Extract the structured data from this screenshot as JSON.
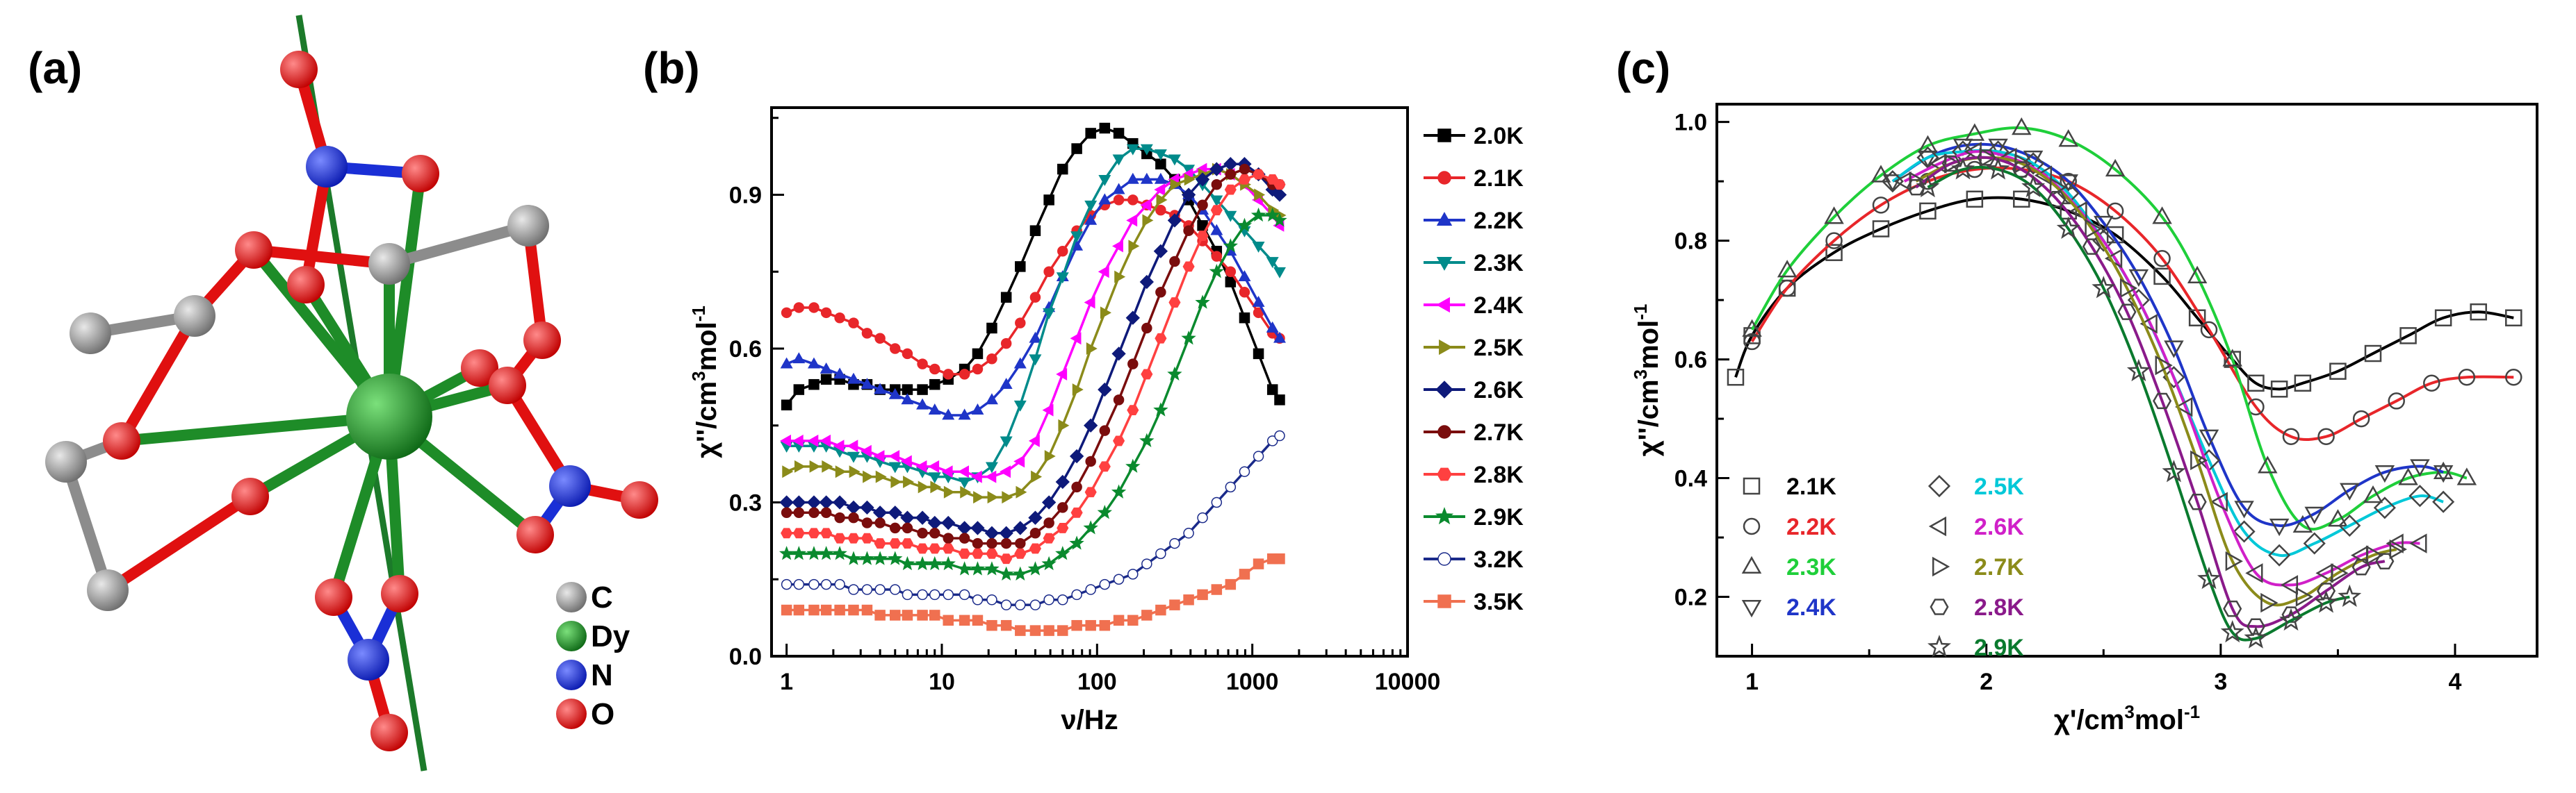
{
  "panels": {
    "a": {
      "label": "(a)",
      "atoms": [
        {
          "symbol": "C",
          "color": "#8c8c8c"
        },
        {
          "symbol": "Dy",
          "color": "#1e8c28"
        },
        {
          "symbol": "N",
          "color": "#1a2fd6"
        },
        {
          "symbol": "O",
          "color": "#e01010"
        }
      ],
      "bond_colors": {
        "dy": "#1e8c28",
        "c": "#8c8c8c",
        "o": "#e01010",
        "n": "#1a2fd6",
        "axis": "#1c7a2a"
      }
    },
    "b": {
      "label": "(b)"
    },
    "c": {
      "label": "(c)"
    }
  },
  "chart_data": [
    {
      "id": "b",
      "type": "line",
      "title": "",
      "xlabel": "ν/Hz",
      "ylabel_main": "χ''/cm",
      "ylabel_sup": "3",
      "ylabel_tail": "mol",
      "ylabel_sup2": "-1",
      "xscale": "log",
      "xlim": [
        0.8,
        10000
      ],
      "ylim": [
        0,
        1.07
      ],
      "xticks": [
        1,
        10,
        100,
        1000,
        10000
      ],
      "xtick_labels": [
        "1",
        "10",
        "100",
        "1000",
        "10000"
      ],
      "yticks": [
        0.0,
        0.3,
        0.6,
        0.9
      ],
      "ytick_labels": [
        "0.0",
        "0.3",
        "0.6",
        "0.9"
      ],
      "legend_position": "right",
      "x": [
        1.0,
        1.2,
        1.5,
        1.8,
        2.2,
        2.7,
        3.3,
        4.0,
        5.0,
        6.0,
        7.5,
        9.0,
        11.0,
        14.0,
        17.0,
        21.0,
        26.0,
        32.0,
        40.0,
        49.0,
        60.0,
        74.0,
        91.0,
        112.0,
        138.0,
        170.0,
        209.0,
        257.0,
        316.0,
        389.0,
        478.0,
        589.0,
        724.0,
        891.0,
        1096.0,
        1349.0,
        1500.0
      ],
      "series": [
        {
          "name": "2.0K",
          "color": "#000000",
          "marker": "square",
          "values": [
            0.49,
            0.52,
            0.53,
            0.54,
            0.54,
            0.53,
            0.53,
            0.52,
            0.52,
            0.52,
            0.52,
            0.53,
            0.54,
            0.56,
            0.59,
            0.64,
            0.7,
            0.76,
            0.83,
            0.89,
            0.95,
            0.99,
            1.02,
            1.03,
            1.02,
            1.0,
            0.98,
            0.96,
            0.93,
            0.89,
            0.84,
            0.79,
            0.73,
            0.66,
            0.59,
            0.52,
            0.5
          ]
        },
        {
          "name": "2.1K",
          "color": "#e8262a",
          "marker": "circle",
          "values": [
            0.67,
            0.68,
            0.68,
            0.67,
            0.66,
            0.65,
            0.63,
            0.62,
            0.6,
            0.59,
            0.57,
            0.56,
            0.55,
            0.55,
            0.56,
            0.58,
            0.61,
            0.65,
            0.7,
            0.75,
            0.79,
            0.83,
            0.86,
            0.88,
            0.89,
            0.89,
            0.88,
            0.87,
            0.86,
            0.84,
            0.81,
            0.78,
            0.75,
            0.71,
            0.67,
            0.63,
            0.62
          ]
        },
        {
          "name": "2.2K",
          "color": "#1f35c8",
          "marker": "triangle",
          "values": [
            0.57,
            0.58,
            0.57,
            0.56,
            0.55,
            0.54,
            0.53,
            0.52,
            0.51,
            0.5,
            0.49,
            0.48,
            0.47,
            0.47,
            0.48,
            0.5,
            0.53,
            0.57,
            0.62,
            0.68,
            0.74,
            0.8,
            0.85,
            0.89,
            0.91,
            0.93,
            0.93,
            0.93,
            0.92,
            0.9,
            0.87,
            0.83,
            0.79,
            0.74,
            0.69,
            0.64,
            0.62
          ]
        },
        {
          "name": "2.3K",
          "color": "#008b8b",
          "marker": "tri-down",
          "values": [
            0.41,
            0.41,
            0.41,
            0.41,
            0.4,
            0.39,
            0.39,
            0.38,
            0.37,
            0.37,
            0.36,
            0.35,
            0.35,
            0.34,
            0.35,
            0.37,
            0.42,
            0.49,
            0.58,
            0.67,
            0.74,
            0.82,
            0.88,
            0.93,
            0.97,
            0.99,
            0.99,
            0.98,
            0.97,
            0.95,
            0.92,
            0.89,
            0.86,
            0.83,
            0.8,
            0.77,
            0.75
          ]
        },
        {
          "name": "2.4K",
          "color": "#ff00ff",
          "marker": "tri-left",
          "values": [
            0.42,
            0.42,
            0.42,
            0.42,
            0.41,
            0.41,
            0.4,
            0.39,
            0.39,
            0.38,
            0.37,
            0.37,
            0.36,
            0.36,
            0.35,
            0.35,
            0.36,
            0.38,
            0.42,
            0.48,
            0.55,
            0.62,
            0.69,
            0.75,
            0.8,
            0.85,
            0.88,
            0.91,
            0.93,
            0.94,
            0.95,
            0.95,
            0.94,
            0.92,
            0.89,
            0.86,
            0.84
          ]
        },
        {
          "name": "2.5K",
          "color": "#8b8b1a",
          "marker": "tri-right",
          "values": [
            0.36,
            0.37,
            0.37,
            0.37,
            0.36,
            0.36,
            0.35,
            0.35,
            0.34,
            0.34,
            0.33,
            0.33,
            0.32,
            0.32,
            0.31,
            0.31,
            0.31,
            0.32,
            0.35,
            0.39,
            0.45,
            0.52,
            0.6,
            0.67,
            0.74,
            0.8,
            0.85,
            0.89,
            0.92,
            0.93,
            0.94,
            0.95,
            0.94,
            0.92,
            0.9,
            0.87,
            0.86
          ]
        },
        {
          "name": "2.6K",
          "color": "#0e1a7a",
          "marker": "diamond",
          "values": [
            0.3,
            0.3,
            0.3,
            0.3,
            0.3,
            0.29,
            0.29,
            0.28,
            0.28,
            0.27,
            0.27,
            0.26,
            0.26,
            0.25,
            0.25,
            0.24,
            0.24,
            0.25,
            0.27,
            0.3,
            0.34,
            0.39,
            0.45,
            0.52,
            0.59,
            0.66,
            0.73,
            0.79,
            0.85,
            0.9,
            0.93,
            0.95,
            0.96,
            0.96,
            0.94,
            0.91,
            0.9
          ]
        },
        {
          "name": "2.7K",
          "color": "#7a0d0d",
          "marker": "circle",
          "values": [
            0.28,
            0.28,
            0.28,
            0.28,
            0.27,
            0.27,
            0.26,
            0.26,
            0.25,
            0.25,
            0.24,
            0.24,
            0.23,
            0.23,
            0.22,
            0.22,
            0.22,
            0.22,
            0.24,
            0.26,
            0.29,
            0.33,
            0.38,
            0.44,
            0.5,
            0.57,
            0.64,
            0.71,
            0.77,
            0.83,
            0.88,
            0.92,
            0.94,
            0.95,
            0.94,
            0.92,
            0.92
          ]
        },
        {
          "name": "2.8K",
          "color": "#ff4040",
          "marker": "hexagon",
          "values": [
            0.24,
            0.24,
            0.24,
            0.24,
            0.23,
            0.23,
            0.23,
            0.22,
            0.22,
            0.22,
            0.21,
            0.21,
            0.21,
            0.2,
            0.2,
            0.2,
            0.19,
            0.2,
            0.21,
            0.23,
            0.25,
            0.28,
            0.32,
            0.37,
            0.42,
            0.48,
            0.55,
            0.62,
            0.69,
            0.76,
            0.82,
            0.87,
            0.91,
            0.93,
            0.94,
            0.93,
            0.92
          ]
        },
        {
          "name": "2.9K",
          "color": "#0a8a2e",
          "marker": "star",
          "values": [
            0.2,
            0.2,
            0.2,
            0.2,
            0.2,
            0.19,
            0.19,
            0.19,
            0.19,
            0.18,
            0.18,
            0.18,
            0.18,
            0.17,
            0.17,
            0.17,
            0.16,
            0.16,
            0.17,
            0.18,
            0.2,
            0.22,
            0.25,
            0.28,
            0.32,
            0.37,
            0.42,
            0.48,
            0.55,
            0.62,
            0.69,
            0.75,
            0.8,
            0.84,
            0.86,
            0.86,
            0.85
          ]
        },
        {
          "name": "3.2K",
          "color": "#1a2a8a",
          "marker": "circle-half",
          "values": [
            0.14,
            0.14,
            0.14,
            0.14,
            0.14,
            0.13,
            0.13,
            0.13,
            0.13,
            0.12,
            0.12,
            0.12,
            0.12,
            0.12,
            0.11,
            0.11,
            0.1,
            0.1,
            0.1,
            0.11,
            0.11,
            0.12,
            0.13,
            0.14,
            0.15,
            0.16,
            0.18,
            0.2,
            0.22,
            0.24,
            0.27,
            0.3,
            0.33,
            0.36,
            0.39,
            0.42,
            0.43
          ]
        },
        {
          "name": "3.5K",
          "color": "#f07050",
          "marker": "square",
          "values": [
            0.09,
            0.09,
            0.09,
            0.09,
            0.09,
            0.09,
            0.09,
            0.08,
            0.08,
            0.08,
            0.08,
            0.08,
            0.07,
            0.07,
            0.07,
            0.06,
            0.06,
            0.05,
            0.05,
            0.05,
            0.05,
            0.06,
            0.06,
            0.06,
            0.07,
            0.07,
            0.08,
            0.09,
            0.1,
            0.11,
            0.12,
            0.13,
            0.14,
            0.16,
            0.18,
            0.19,
            0.19
          ]
        }
      ]
    },
    {
      "id": "c",
      "type": "scatter",
      "title": "",
      "xlabel_main": "χ'/cm",
      "xlabel_sup": "3",
      "xlabel_tail": "mol",
      "xlabel_sup2": "-1",
      "ylabel_main": "χ''/cm",
      "ylabel_sup": "3",
      "ylabel_tail": "mol",
      "ylabel_sup2": "-1",
      "xlim": [
        0.85,
        4.35
      ],
      "ylim": [
        0.1,
        1.03
      ],
      "xticks": [
        1,
        2,
        3,
        4
      ],
      "xtick_labels": [
        "1",
        "2",
        "3",
        "4"
      ],
      "yticks": [
        0.2,
        0.4,
        0.6,
        0.8,
        1.0
      ],
      "ytick_labels": [
        "0.2",
        "0.4",
        "0.6",
        "0.8",
        "1.0"
      ],
      "legend_position": "bottom-left",
      "series": [
        {
          "name": "2.1K",
          "color": "#000000",
          "marker": "square",
          "x": [
            0.93,
            1.0,
            1.15,
            1.35,
            1.55,
            1.75,
            1.95,
            2.15,
            2.35,
            2.55,
            2.75,
            2.9,
            3.05,
            3.15,
            3.25,
            3.35,
            3.5,
            3.65,
            3.8,
            3.95,
            4.1,
            4.25
          ],
          "y": [
            0.57,
            0.64,
            0.72,
            0.78,
            0.82,
            0.85,
            0.87,
            0.87,
            0.85,
            0.81,
            0.74,
            0.67,
            0.6,
            0.56,
            0.55,
            0.56,
            0.58,
            0.61,
            0.64,
            0.67,
            0.68,
            0.67
          ]
        },
        {
          "name": "2.2K",
          "color": "#e8262a",
          "marker": "circle",
          "x": [
            1.0,
            1.15,
            1.35,
            1.55,
            1.75,
            1.95,
            2.15,
            2.35,
            2.55,
            2.75,
            2.95,
            3.15,
            3.3,
            3.45,
            3.6,
            3.75,
            3.9,
            4.05,
            4.25
          ],
          "y": [
            0.63,
            0.72,
            0.8,
            0.86,
            0.9,
            0.92,
            0.92,
            0.9,
            0.85,
            0.77,
            0.65,
            0.52,
            0.47,
            0.47,
            0.5,
            0.53,
            0.56,
            0.57,
            0.57
          ]
        },
        {
          "name": "2.3K",
          "color": "#1fcf3a",
          "marker": "triangle",
          "x": [
            1.0,
            1.15,
            1.35,
            1.55,
            1.75,
            1.95,
            2.15,
            2.35,
            2.55,
            2.75,
            2.9,
            3.05,
            3.2,
            3.35,
            3.5,
            3.65,
            3.8,
            3.95,
            4.05
          ],
          "y": [
            0.65,
            0.75,
            0.84,
            0.91,
            0.96,
            0.98,
            0.99,
            0.97,
            0.92,
            0.84,
            0.74,
            0.6,
            0.42,
            0.32,
            0.33,
            0.37,
            0.4,
            0.41,
            0.4
          ]
        },
        {
          "name": "2.4K",
          "color": "#1f35c8",
          "marker": "tri-down",
          "x": [
            1.6,
            1.75,
            1.9,
            2.05,
            2.2,
            2.35,
            2.5,
            2.65,
            2.8,
            2.95,
            3.1,
            3.25,
            3.4,
            3.55,
            3.7,
            3.85,
            3.95
          ],
          "y": [
            0.9,
            0.94,
            0.96,
            0.96,
            0.94,
            0.9,
            0.83,
            0.74,
            0.62,
            0.47,
            0.35,
            0.32,
            0.34,
            0.38,
            0.41,
            0.42,
            0.41
          ]
        },
        {
          "name": "2.5K",
          "color": "#00c8d8",
          "marker": "diamond",
          "x": [
            1.6,
            1.75,
            1.9,
            2.05,
            2.2,
            2.35,
            2.5,
            2.65,
            2.8,
            2.95,
            3.1,
            3.25,
            3.4,
            3.55,
            3.7,
            3.85,
            3.95
          ],
          "y": [
            0.9,
            0.94,
            0.95,
            0.95,
            0.93,
            0.88,
            0.8,
            0.7,
            0.57,
            0.43,
            0.31,
            0.27,
            0.29,
            0.32,
            0.35,
            0.37,
            0.36
          ]
        },
        {
          "name": "2.6K",
          "color": "#d020c8",
          "marker": "tri-left",
          "x": [
            1.65,
            1.8,
            1.95,
            2.1,
            2.25,
            2.4,
            2.55,
            2.7,
            2.85,
            3.0,
            3.15,
            3.3,
            3.45,
            3.6,
            3.75,
            3.85
          ],
          "y": [
            0.9,
            0.93,
            0.95,
            0.94,
            0.91,
            0.85,
            0.77,
            0.66,
            0.52,
            0.36,
            0.24,
            0.22,
            0.24,
            0.27,
            0.29,
            0.29
          ]
        },
        {
          "name": "2.7K",
          "color": "#8b8b1a",
          "marker": "tri-right",
          "x": [
            1.7,
            1.85,
            2.0,
            2.15,
            2.3,
            2.45,
            2.6,
            2.75,
            2.9,
            3.05,
            3.2,
            3.35,
            3.5,
            3.65,
            3.75
          ],
          "y": [
            0.9,
            0.93,
            0.94,
            0.93,
            0.89,
            0.82,
            0.72,
            0.59,
            0.43,
            0.26,
            0.19,
            0.2,
            0.24,
            0.27,
            0.28
          ]
        },
        {
          "name": "2.8K",
          "color": "#8a1a8a",
          "marker": "hexagon",
          "x": [
            1.7,
            1.85,
            2.0,
            2.15,
            2.3,
            2.45,
            2.6,
            2.75,
            2.9,
            3.05,
            3.15,
            3.3,
            3.45,
            3.6,
            3.7
          ],
          "y": [
            0.89,
            0.93,
            0.94,
            0.92,
            0.87,
            0.79,
            0.68,
            0.53,
            0.36,
            0.18,
            0.15,
            0.17,
            0.21,
            0.25,
            0.26
          ]
        },
        {
          "name": "2.9K",
          "color": "#0a7a2e",
          "marker": "star",
          "x": [
            1.75,
            1.9,
            2.05,
            2.2,
            2.35,
            2.5,
            2.65,
            2.8,
            2.95,
            3.05,
            3.15,
            3.3,
            3.45,
            3.55
          ],
          "y": [
            0.89,
            0.92,
            0.92,
            0.89,
            0.82,
            0.72,
            0.58,
            0.41,
            0.23,
            0.14,
            0.13,
            0.16,
            0.19,
            0.2
          ]
        }
      ]
    }
  ]
}
